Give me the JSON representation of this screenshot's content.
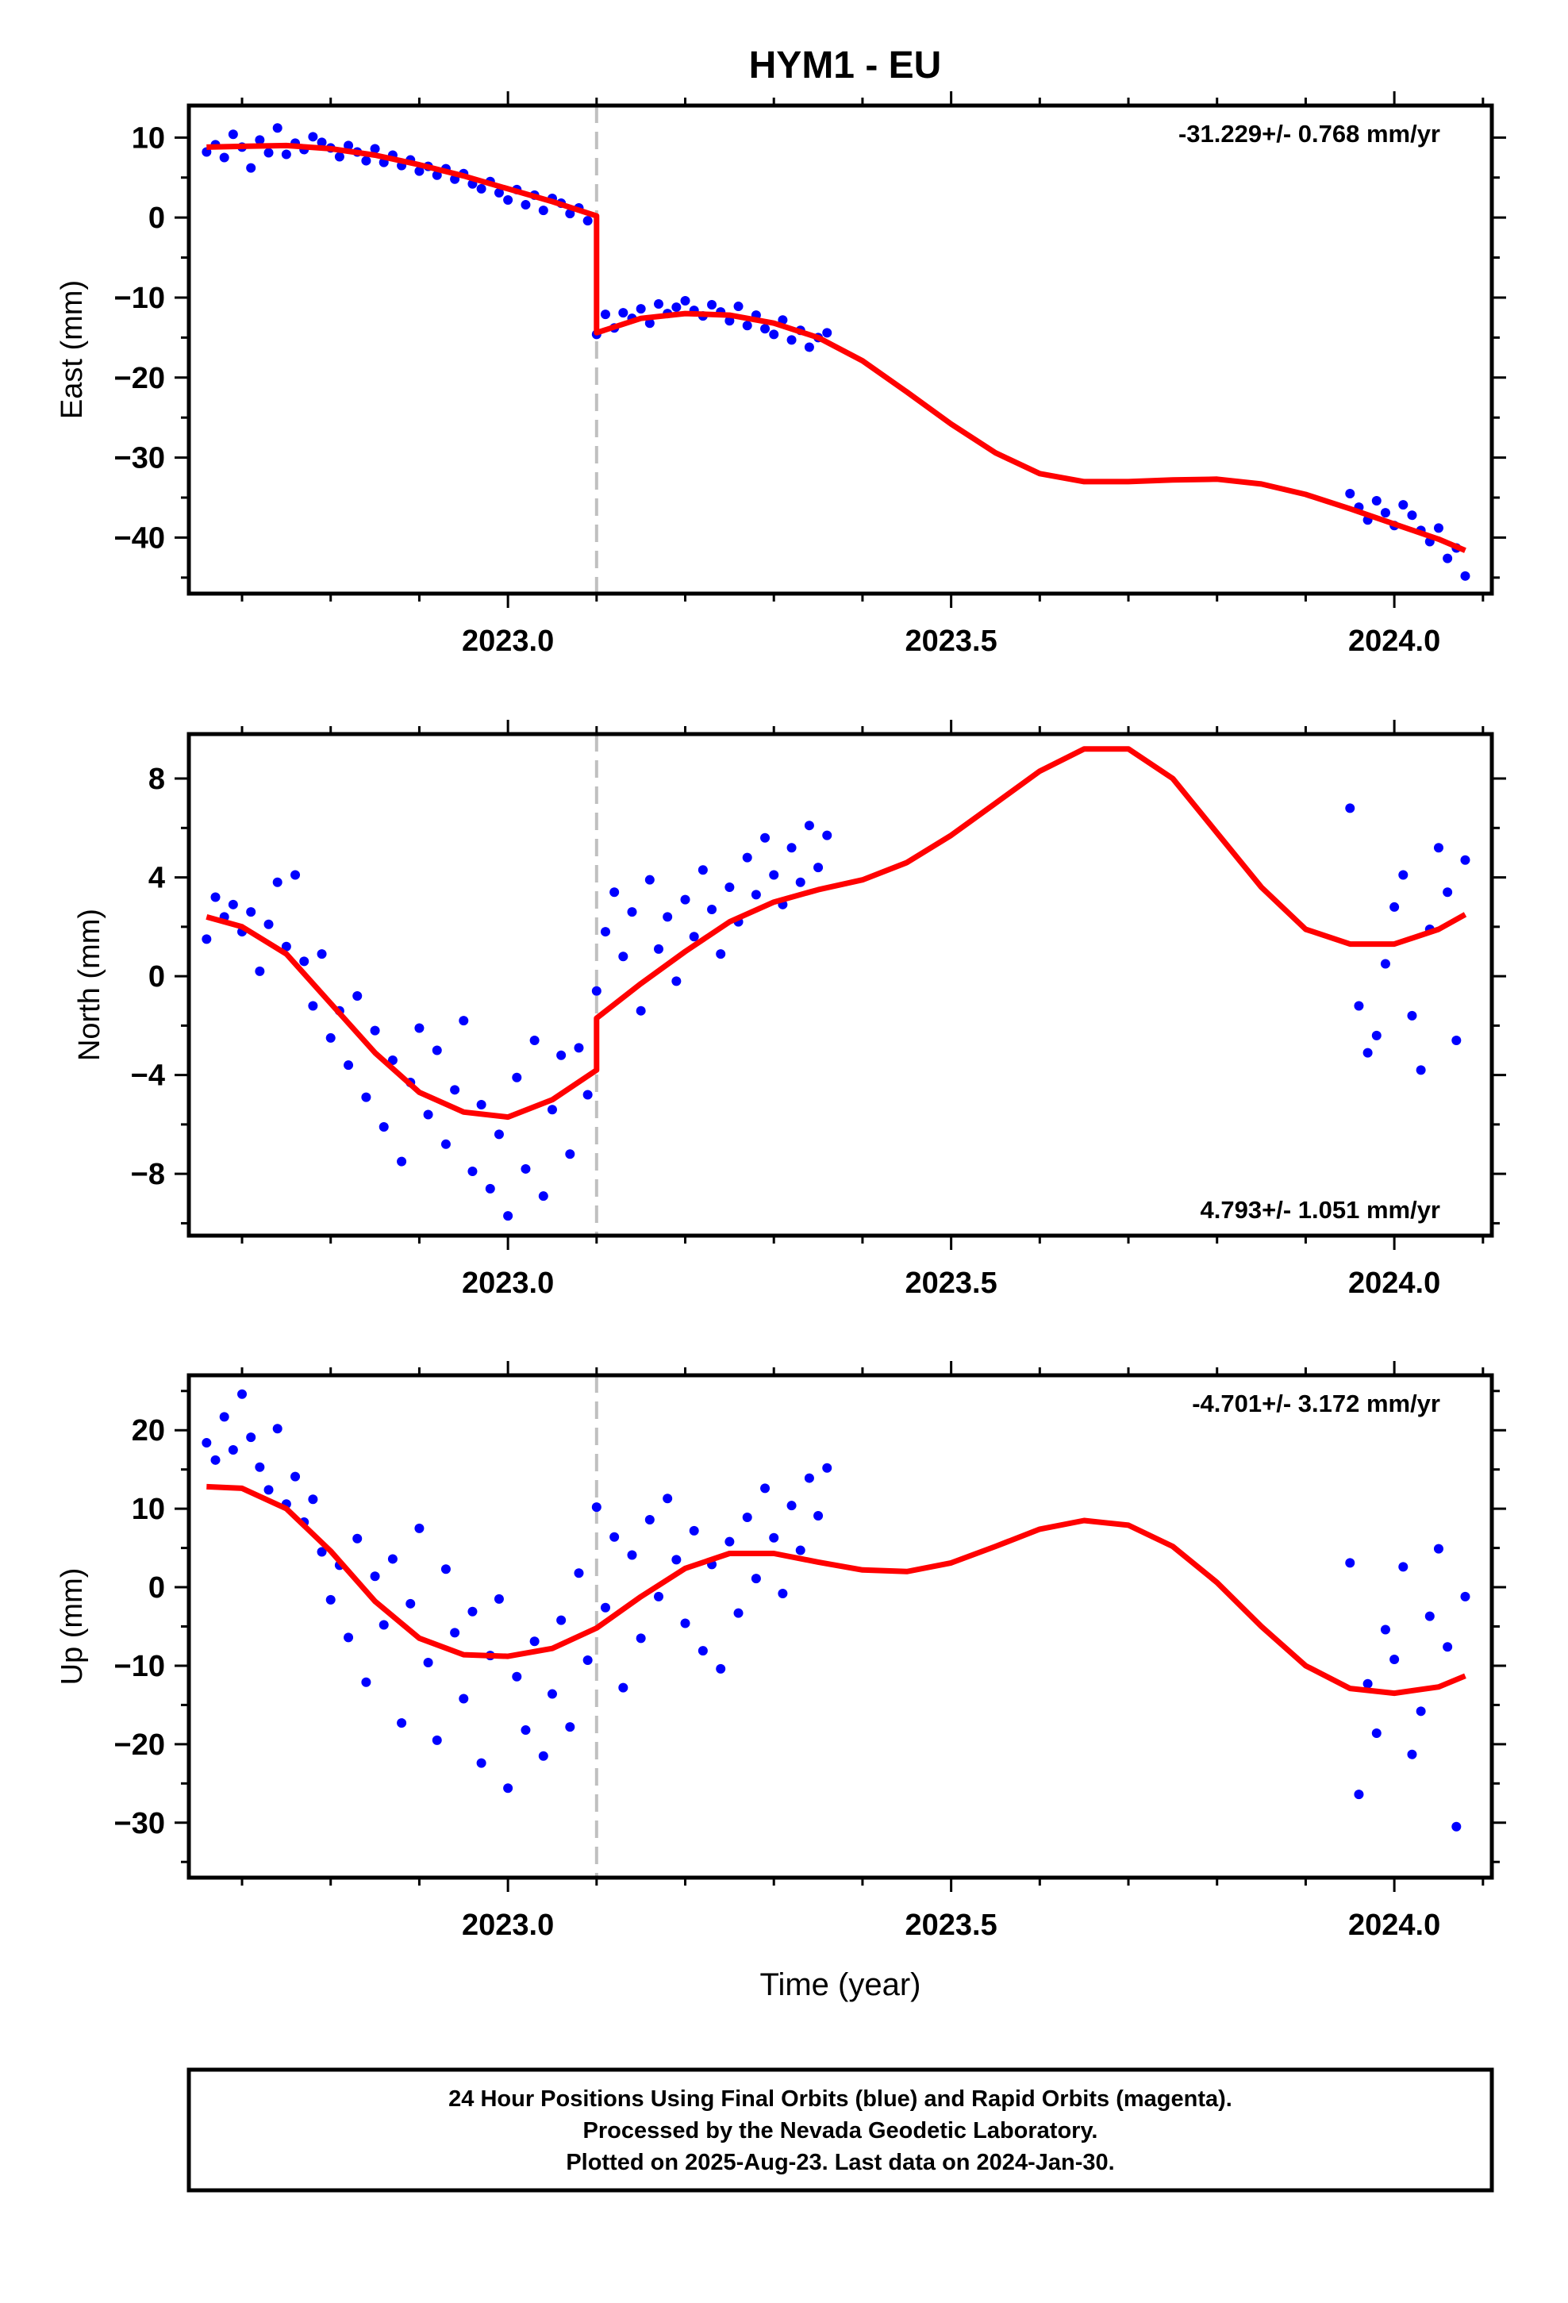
{
  "title": "HYM1 - EU",
  "footer": {
    "line1": "24 Hour Positions Using Final Orbits (blue) and Rapid Orbits (magenta).",
    "line2": "Processed by the Nevada Geodetic Laboratory.",
    "line3": "Plotted on 2025-Aug-23. Last data on 2024-Jan-30."
  },
  "colors": {
    "points": "#0000ff",
    "fit": "#ff0000",
    "event_line": "#c0c0c0",
    "frame": "#000000"
  },
  "chart_data": [
    {
      "type": "scatter",
      "ylabel": "East (mm)",
      "xlabel": "",
      "annotation": "-31.229+/- 0.768 mm/yr",
      "annotation_position": "top-right",
      "xlim": [
        2022.64,
        2024.11
      ],
      "ylim": [
        -47,
        14
      ],
      "xticks": [
        "2023.0",
        "2023.5",
        "2024.0"
      ],
      "yticks": [
        "10",
        "0",
        "−10",
        "−20",
        "−30",
        "−40"
      ],
      "ytick_values": [
        10,
        0,
        -10,
        -20,
        -30,
        -40
      ],
      "event_x": 2023.1,
      "series": [
        {
          "kind": "points",
          "x": [
            2022.66,
            2022.67,
            2022.68,
            2022.69,
            2022.7,
            2022.71,
            2022.72,
            2022.73,
            2022.74,
            2022.75,
            2022.76,
            2022.77,
            2022.78,
            2022.79,
            2022.8,
            2022.81,
            2022.82,
            2022.83,
            2022.84,
            2022.85,
            2022.86,
            2022.87,
            2022.88,
            2022.89,
            2022.9,
            2022.91,
            2022.92,
            2022.93,
            2022.94,
            2022.95,
            2022.96,
            2022.97,
            2022.98,
            2022.99,
            2023.0,
            2023.01,
            2023.02,
            2023.03,
            2023.04,
            2023.05,
            2023.06,
            2023.07,
            2023.08,
            2023.09,
            2023.1,
            2023.11,
            2023.12,
            2023.13,
            2023.14,
            2023.15,
            2023.16,
            2023.17,
            2023.18,
            2023.19,
            2023.2,
            2023.21,
            2023.22,
            2023.23,
            2023.24,
            2023.25,
            2023.26,
            2023.27,
            2023.28,
            2023.29,
            2023.3,
            2023.31,
            2023.32,
            2023.33,
            2023.34,
            2023.35,
            2023.36,
            2023.95,
            2023.96,
            2023.97,
            2023.98,
            2023.99,
            2024.0,
            2024.01,
            2024.02,
            2024.03,
            2024.04,
            2024.05,
            2024.06,
            2024.07,
            2024.08
          ],
          "y": [
            8.2,
            9.1,
            7.5,
            10.4,
            8.8,
            6.2,
            9.7,
            8.1,
            11.2,
            7.9,
            9.3,
            8.5,
            10.1,
            9.4,
            8.7,
            7.6,
            9.0,
            8.2,
            7.1,
            8.6,
            6.9,
            7.8,
            6.5,
            7.2,
            5.8,
            6.4,
            5.3,
            6.1,
            4.8,
            5.5,
            4.2,
            3.6,
            4.5,
            3.1,
            2.2,
            3.5,
            1.6,
            2.8,
            0.9,
            2.4,
            1.8,
            0.5,
            1.2,
            -0.4,
            -14.6,
            -12.1,
            -13.8,
            -11.9,
            -12.6,
            -11.4,
            -13.2,
            -10.8,
            -12.0,
            -11.2,
            -10.4,
            -11.6,
            -12.3,
            -10.9,
            -11.8,
            -12.9,
            -11.1,
            -13.5,
            -12.2,
            -13.9,
            -14.6,
            -12.8,
            -15.3,
            -14.1,
            -16.2,
            -15.0,
            -14.4,
            -34.5,
            -36.2,
            -37.8,
            -35.4,
            -36.9,
            -38.5,
            -35.9,
            -37.2,
            -39.1,
            -40.5,
            -38.8,
            -42.6,
            -41.3,
            -44.8
          ]
        },
        {
          "kind": "fit",
          "x": [
            2022.66,
            2022.7,
            2022.75,
            2022.8,
            2022.85,
            2022.9,
            2022.95,
            2023.0,
            2023.05,
            2023.1,
            2023.1,
            2023.15,
            2023.2,
            2023.25,
            2023.3,
            2023.35,
            2023.4,
            2023.45,
            2023.5,
            2023.55,
            2023.6,
            2023.65,
            2023.7,
            2023.75,
            2023.8,
            2023.85,
            2023.9,
            2023.95,
            2024.0,
            2024.05,
            2024.08
          ],
          "y": [
            8.8,
            8.9,
            9.0,
            8.6,
            7.8,
            6.6,
            5.2,
            3.6,
            2.0,
            0.2,
            -14.4,
            -12.6,
            -12.0,
            -12.2,
            -13.2,
            -15.0,
            -17.9,
            -21.8,
            -25.8,
            -29.4,
            -32.0,
            -33.0,
            -33.0,
            -32.8,
            -32.7,
            -33.3,
            -34.6,
            -36.4,
            -38.3,
            -40.2,
            -41.6
          ]
        }
      ]
    },
    {
      "type": "scatter",
      "ylabel": "North (mm)",
      "xlabel": "",
      "annotation": "4.793+/- 1.051 mm/yr",
      "annotation_position": "bottom-right",
      "xlim": [
        2022.64,
        2024.11
      ],
      "ylim": [
        -10.5,
        9.8
      ],
      "xticks": [
        "2023.0",
        "2023.5",
        "2024.0"
      ],
      "yticks": [
        "8",
        "4",
        "0",
        "−4",
        "−8"
      ],
      "ytick_values": [
        8,
        4,
        0,
        -4,
        -8
      ],
      "event_x": 2023.1,
      "series": [
        {
          "kind": "points",
          "x": [
            2022.66,
            2022.67,
            2022.68,
            2022.69,
            2022.7,
            2022.71,
            2022.72,
            2022.73,
            2022.74,
            2022.75,
            2022.76,
            2022.77,
            2022.78,
            2022.79,
            2022.8,
            2022.81,
            2022.82,
            2022.83,
            2022.84,
            2022.85,
            2022.86,
            2022.87,
            2022.88,
            2022.89,
            2022.9,
            2022.91,
            2022.92,
            2022.93,
            2022.94,
            2022.95,
            2022.96,
            2022.97,
            2022.98,
            2022.99,
            2023.0,
            2023.01,
            2023.02,
            2023.03,
            2023.04,
            2023.05,
            2023.06,
            2023.07,
            2023.08,
            2023.09,
            2023.1,
            2023.11,
            2023.12,
            2023.13,
            2023.14,
            2023.15,
            2023.16,
            2023.17,
            2023.18,
            2023.19,
            2023.2,
            2023.21,
            2023.22,
            2023.23,
            2023.24,
            2023.25,
            2023.26,
            2023.27,
            2023.28,
            2023.29,
            2023.3,
            2023.31,
            2023.32,
            2023.33,
            2023.34,
            2023.35,
            2023.36,
            2023.95,
            2023.96,
            2023.97,
            2023.98,
            2023.99,
            2024.0,
            2024.01,
            2024.02,
            2024.03,
            2024.04,
            2024.05,
            2024.06,
            2024.07,
            2024.08
          ],
          "y": [
            1.5,
            3.2,
            2.4,
            2.9,
            1.8,
            2.6,
            0.2,
            2.1,
            3.8,
            1.2,
            4.1,
            0.6,
            -1.2,
            0.9,
            -2.5,
            -1.4,
            -3.6,
            -0.8,
            -4.9,
            -2.2,
            -6.1,
            -3.4,
            -7.5,
            -4.3,
            -2.1,
            -5.6,
            -3.0,
            -6.8,
            -4.6,
            -1.8,
            -7.9,
            -5.2,
            -8.6,
            -6.4,
            -9.7,
            -4.1,
            -7.8,
            -2.6,
            -8.9,
            -5.4,
            -3.2,
            -7.2,
            -2.9,
            -4.8,
            -0.6,
            1.8,
            3.4,
            0.8,
            2.6,
            -1.4,
            3.9,
            1.1,
            2.4,
            -0.2,
            3.1,
            1.6,
            4.3,
            2.7,
            0.9,
            3.6,
            2.2,
            4.8,
            3.3,
            5.6,
            4.1,
            2.9,
            5.2,
            3.8,
            6.1,
            4.4,
            5.7,
            6.8,
            -1.2,
            -3.1,
            -2.4,
            0.5,
            2.8,
            4.1,
            -1.6,
            -3.8,
            1.9,
            5.2,
            3.4,
            -2.6,
            4.7
          ]
        },
        {
          "kind": "fit",
          "x": [
            2022.66,
            2022.7,
            2022.75,
            2022.8,
            2022.85,
            2022.9,
            2022.95,
            2023.0,
            2023.05,
            2023.1,
            2023.1,
            2023.15,
            2023.2,
            2023.25,
            2023.3,
            2023.35,
            2023.4,
            2023.45,
            2023.5,
            2023.55,
            2023.6,
            2023.65,
            2023.7,
            2023.75,
            2023.8,
            2023.85,
            2023.9,
            2023.95,
            2024.0,
            2024.05,
            2024.08
          ],
          "y": [
            2.4,
            2.0,
            0.9,
            -1.1,
            -3.1,
            -4.7,
            -5.5,
            -5.7,
            -5.0,
            -3.8,
            -1.7,
            -0.3,
            1.0,
            2.2,
            3.0,
            3.5,
            3.9,
            4.6,
            5.7,
            7.0,
            8.3,
            9.2,
            9.2,
            8.0,
            5.8,
            3.6,
            1.9,
            1.3,
            1.3,
            1.9,
            2.5
          ]
        }
      ]
    },
    {
      "type": "scatter",
      "ylabel": "Up (mm)",
      "xlabel": "Time (year)",
      "annotation": "-4.701+/- 3.172 mm/yr",
      "annotation_position": "top-right",
      "xlim": [
        2022.64,
        2024.11
      ],
      "ylim": [
        -37,
        27
      ],
      "xticks": [
        "2023.0",
        "2023.5",
        "2024.0"
      ],
      "yticks": [
        "20",
        "10",
        "0",
        "−10",
        "−20",
        "−30"
      ],
      "ytick_values": [
        20,
        10,
        0,
        -10,
        -20,
        -30
      ],
      "event_x": 2023.1,
      "series": [
        {
          "kind": "points",
          "x": [
            2022.66,
            2022.67,
            2022.68,
            2022.69,
            2022.7,
            2022.71,
            2022.72,
            2022.73,
            2022.74,
            2022.75,
            2022.76,
            2022.77,
            2022.78,
            2022.79,
            2022.8,
            2022.81,
            2022.82,
            2022.83,
            2022.84,
            2022.85,
            2022.86,
            2022.87,
            2022.88,
            2022.89,
            2022.9,
            2022.91,
            2022.92,
            2022.93,
            2022.94,
            2022.95,
            2022.96,
            2022.97,
            2022.98,
            2022.99,
            2023.0,
            2023.01,
            2023.02,
            2023.03,
            2023.04,
            2023.05,
            2023.06,
            2023.07,
            2023.08,
            2023.09,
            2023.1,
            2023.11,
            2023.12,
            2023.13,
            2023.14,
            2023.15,
            2023.16,
            2023.17,
            2023.18,
            2023.19,
            2023.2,
            2023.21,
            2023.22,
            2023.23,
            2023.24,
            2023.25,
            2023.26,
            2023.27,
            2023.28,
            2023.29,
            2023.3,
            2023.31,
            2023.32,
            2023.33,
            2023.34,
            2023.35,
            2023.36,
            2023.95,
            2023.96,
            2023.97,
            2023.98,
            2023.99,
            2024.0,
            2024.01,
            2024.02,
            2024.03,
            2024.04,
            2024.05,
            2024.06,
            2024.07,
            2024.08
          ],
          "y": [
            18.4,
            16.2,
            21.7,
            17.5,
            24.6,
            19.1,
            15.3,
            12.4,
            20.2,
            10.6,
            14.1,
            8.3,
            11.2,
            4.5,
            -1.6,
            2.8,
            -6.4,
            6.2,
            -12.1,
            1.4,
            -4.8,
            3.6,
            -17.3,
            -2.1,
            7.5,
            -9.6,
            -19.5,
            2.3,
            -5.8,
            -14.2,
            -3.1,
            -22.4,
            -8.7,
            -1.5,
            -25.6,
            -11.4,
            -18.2,
            -6.9,
            -21.5,
            -13.6,
            -4.2,
            -17.8,
            1.8,
            -9.3,
            10.2,
            -2.6,
            6.4,
            -12.8,
            4.1,
            -6.5,
            8.6,
            -1.2,
            11.3,
            3.5,
            -4.6,
            7.2,
            -8.1,
            2.9,
            -10.4,
            5.8,
            -3.3,
            8.9,
            1.1,
            12.6,
            6.3,
            -0.8,
            10.4,
            4.7,
            13.9,
            9.1,
            15.2,
            3.1,
            -26.4,
            -12.3,
            -18.6,
            -5.4,
            -9.2,
            2.6,
            -21.3,
            -15.8,
            -3.7,
            4.9,
            -7.6,
            -30.5,
            -1.2
          ]
        },
        {
          "kind": "fit",
          "x": [
            2022.66,
            2022.7,
            2022.75,
            2022.8,
            2022.85,
            2022.9,
            2022.95,
            2023.0,
            2023.05,
            2023.1,
            2023.15,
            2023.2,
            2023.25,
            2023.3,
            2023.35,
            2023.4,
            2023.45,
            2023.5,
            2023.55,
            2023.6,
            2023.65,
            2023.7,
            2023.75,
            2023.8,
            2023.85,
            2023.9,
            2023.95,
            2024.0,
            2024.05,
            2024.08
          ],
          "y": [
            12.8,
            12.6,
            10.0,
            4.6,
            -1.8,
            -6.5,
            -8.6,
            -8.8,
            -7.8,
            -5.2,
            -1.2,
            2.4,
            4.3,
            4.3,
            3.2,
            2.2,
            2.0,
            3.1,
            5.2,
            7.4,
            8.5,
            7.9,
            5.2,
            0.6,
            -5.0,
            -10.0,
            -12.9,
            -13.5,
            -12.7,
            -11.3
          ]
        }
      ]
    }
  ]
}
